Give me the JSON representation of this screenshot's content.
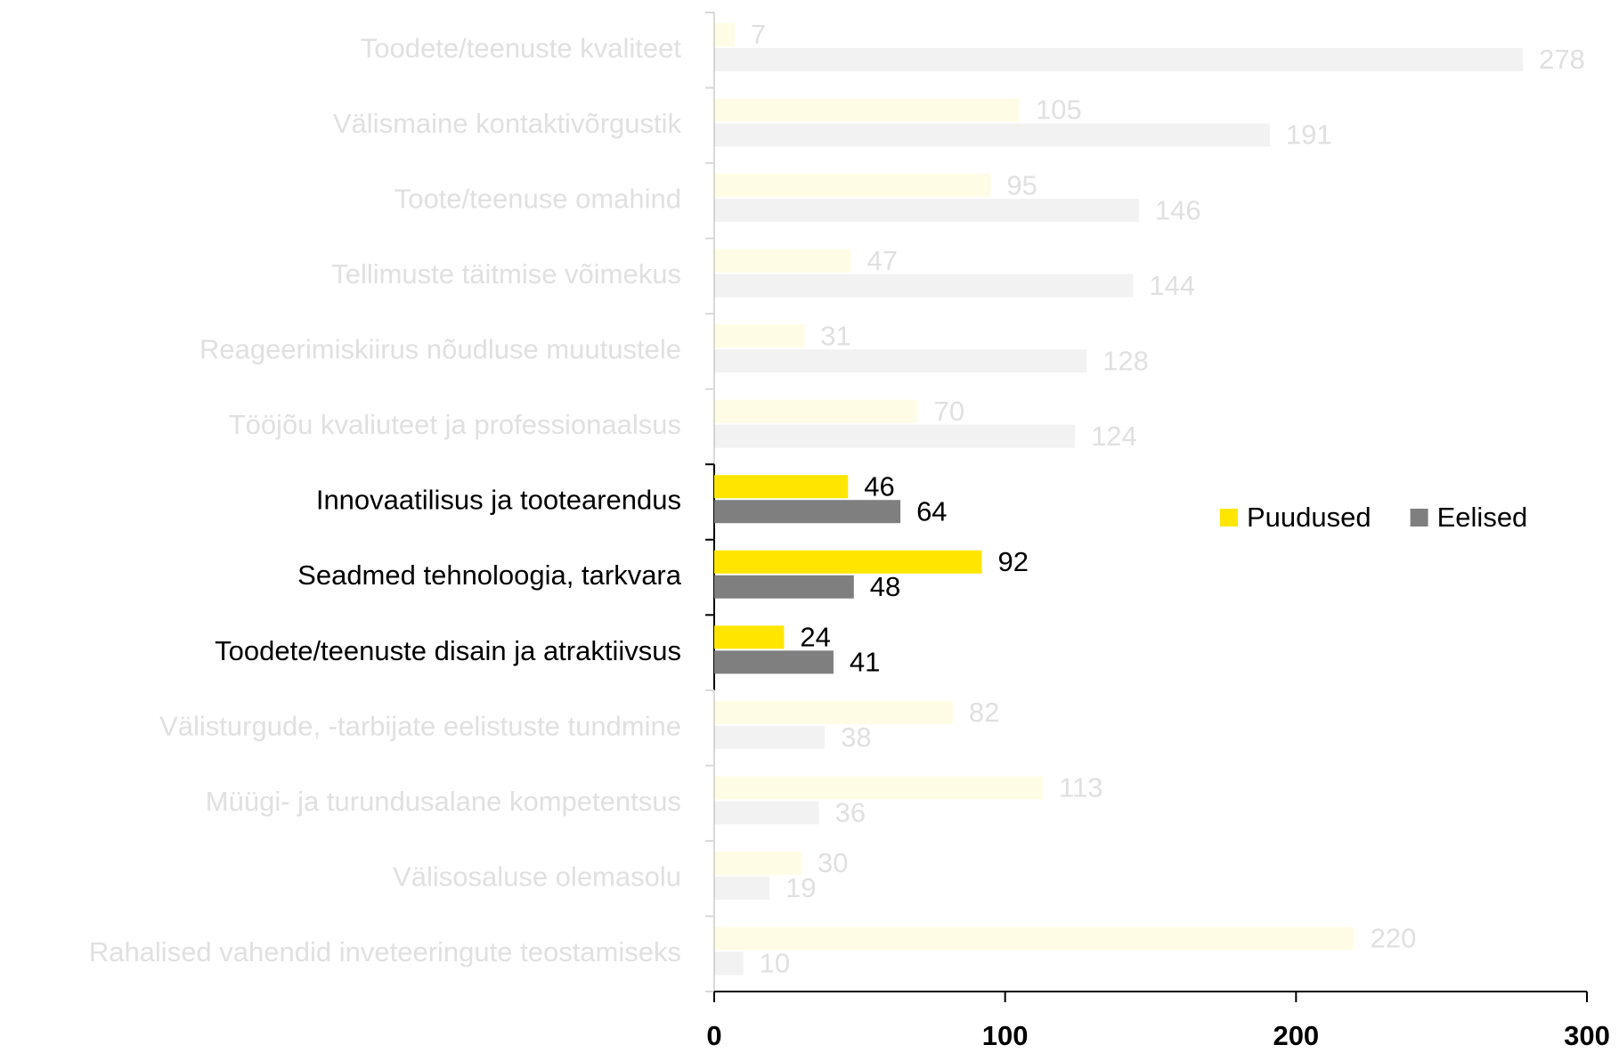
{
  "chart_data": {
    "type": "hbar",
    "categories": [
      "Toodete/teenuste kvaliteet",
      "Välismaine kontaktivõrgustik",
      "Toote/teenuse omahind",
      "Tellimuste täitmise võimekus",
      "Reageerimiskiirus nõudluse muutustele",
      "Tööjõu kvaliuteet ja professionaalsus",
      "Innovaatilisus ja tootearendus",
      "Seadmed tehnoloogia, tarkvara",
      "Toodete/teenuste disain ja atraktiivsus",
      "Välisturgude, -tarbijate eelistuste tundmine",
      "Müügi- ja turundusalane kompetentsus",
      "Välisosaluse olemasolu",
      "Rahalised vahendid inveteeringute teostamiseks"
    ],
    "series": [
      {
        "name": "Puudused",
        "color": "#ffe600",
        "values": [
          7,
          105,
          95,
          47,
          31,
          70,
          46,
          92,
          24,
          82,
          113,
          30,
          220
        ]
      },
      {
        "name": "Eelised",
        "color": "#7f7f80",
        "values": [
          278,
          191,
          146,
          144,
          128,
          124,
          64,
          48,
          41,
          38,
          36,
          19,
          10
        ]
      }
    ],
    "highlighted_categories": [
      "Innovaatilisus ja tootearendus",
      "Seadmed tehnoloogia, tarkvara",
      "Toodete/teenuste disain ja atraktiivsus"
    ],
    "xlim": [
      0,
      300
    ],
    "xticks": [
      0,
      100,
      200,
      300
    ],
    "legend": "right"
  }
}
